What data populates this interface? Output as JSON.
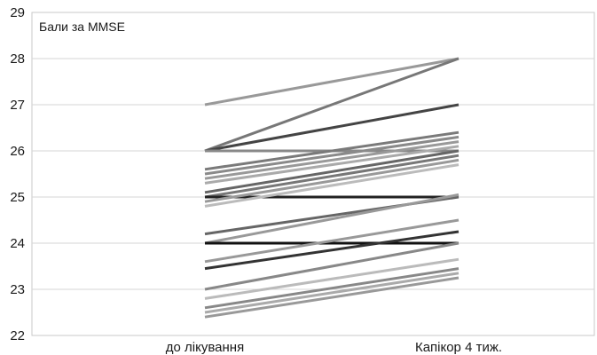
{
  "chart_data": {
    "type": "line",
    "ylabel": "Бали за MMSE",
    "categories": [
      "до лікування",
      "Капікор 4 тиж."
    ],
    "ylim": [
      22,
      29
    ],
    "yticks": [
      22,
      23,
      24,
      25,
      26,
      27,
      28,
      29
    ],
    "grid": "horizontal",
    "series": [
      {
        "values": [
          27.0,
          28.0
        ],
        "color": "#999999"
      },
      {
        "values": [
          26.0,
          28.0
        ],
        "color": "#777777"
      },
      {
        "values": [
          26.0,
          27.0
        ],
        "color": "#444444"
      },
      {
        "values": [
          26.0,
          26.0
        ],
        "color": "#888888"
      },
      {
        "values": [
          25.6,
          26.4
        ],
        "color": "#7a7a7a"
      },
      {
        "values": [
          25.5,
          26.3
        ],
        "color": "#8a8a8a"
      },
      {
        "values": [
          25.4,
          26.2
        ],
        "color": "#999999"
      },
      {
        "values": [
          25.3,
          26.1
        ],
        "color": "#aaaaaa"
      },
      {
        "values": [
          25.1,
          26.0
        ],
        "color": "#666666"
      },
      {
        "values": [
          25.0,
          25.9
        ],
        "color": "#777777"
      },
      {
        "values": [
          25.0,
          25.0
        ],
        "color": "#222222"
      },
      {
        "values": [
          24.9,
          25.8
        ],
        "color": "#999999"
      },
      {
        "values": [
          24.8,
          25.7
        ],
        "color": "#bbbbbb"
      },
      {
        "values": [
          24.2,
          25.0
        ],
        "color": "#666666"
      },
      {
        "values": [
          24.0,
          25.05
        ],
        "color": "#999999"
      },
      {
        "values": [
          24.0,
          24.0
        ],
        "color": "#111111"
      },
      {
        "values": [
          23.6,
          24.5
        ],
        "color": "#999999"
      },
      {
        "values": [
          23.45,
          24.25
        ],
        "color": "#333333"
      },
      {
        "values": [
          23.0,
          24.0
        ],
        "color": "#888888"
      },
      {
        "values": [
          22.8,
          23.65
        ],
        "color": "#bbbbbb"
      },
      {
        "values": [
          22.6,
          23.45
        ],
        "color": "#888888"
      },
      {
        "values": [
          22.5,
          23.35
        ],
        "color": "#aaaaaa"
      },
      {
        "values": [
          22.4,
          23.25
        ],
        "color": "#999999"
      }
    ]
  }
}
